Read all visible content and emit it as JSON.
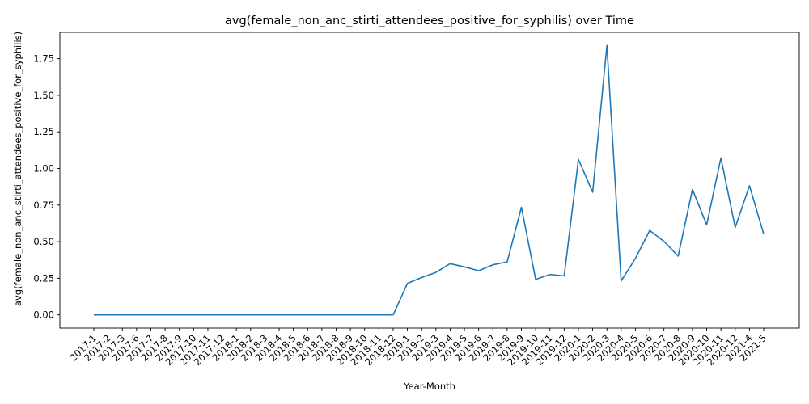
{
  "chart_data": {
    "type": "line",
    "title": "avg(female_non_anc_stirti_attendees_positive_for_syphilis) over Time",
    "xlabel": "Year-Month",
    "ylabel": "avg(female_non_anc_stirti_attendees_positive_for_syphilis)",
    "ylim": [
      -0.09,
      1.93
    ],
    "yticks": [
      "0.00",
      "0.25",
      "0.50",
      "0.75",
      "1.00",
      "1.25",
      "1.50",
      "1.75"
    ],
    "grid": false,
    "categories": [
      "2017-1",
      "2017-2",
      "2017-3",
      "2017-6",
      "2017-7",
      "2017-8",
      "2017-9",
      "2017-10",
      "2017-11",
      "2017-12",
      "2018-1",
      "2018-2",
      "2018-3",
      "2018-4",
      "2018-5",
      "2018-6",
      "2018-7",
      "2018-8",
      "2018-9",
      "2018-10",
      "2018-11",
      "2018-12",
      "2019-1",
      "2019-2",
      "2019-3",
      "2019-4",
      "2019-5",
      "2019-6",
      "2019-7",
      "2019-8",
      "2019-9",
      "2019-10",
      "2019-11",
      "2019-12",
      "2020-1",
      "2020-2",
      "2020-3",
      "2020-4",
      "2020-5",
      "2020-6",
      "2020-7",
      "2020-8",
      "2020-9",
      "2020-10",
      "2020-11",
      "2020-12",
      "2021-4",
      "2021-5"
    ],
    "series": [
      {
        "name": "",
        "color": "#1f77b4",
        "values": [
          0,
          0,
          0,
          0,
          0,
          0,
          0,
          0,
          0,
          0,
          0,
          0,
          0,
          0,
          0,
          0,
          0,
          0,
          0,
          0,
          0,
          0,
          0.215,
          0.255,
          0.29,
          0.35,
          0.328,
          0.302,
          0.342,
          0.362,
          0.735,
          0.243,
          0.276,
          0.266,
          1.062,
          0.838,
          1.84,
          0.232,
          0.385,
          0.577,
          0.502,
          0.402,
          0.857,
          0.615,
          1.072,
          0.597,
          0.882,
          0.552
        ]
      }
    ]
  }
}
